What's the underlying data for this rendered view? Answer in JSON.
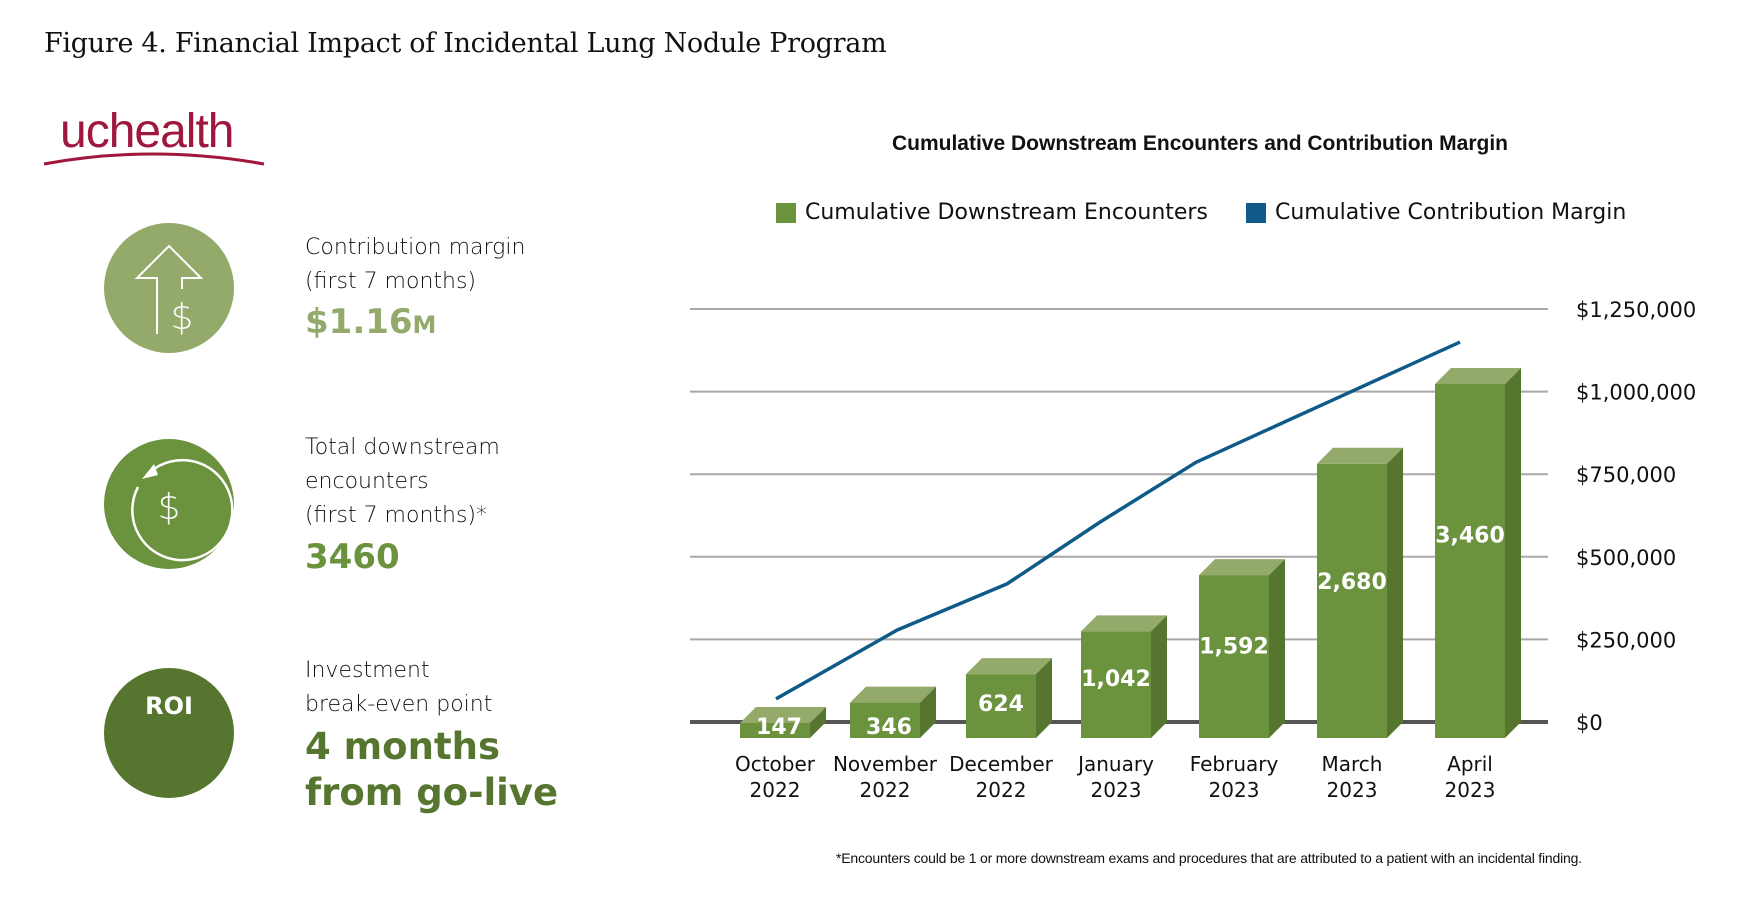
{
  "figure_title": "Figure 4. Financial Impact of Incidental Lung Nodule Program",
  "logo": {
    "text": "uchealth",
    "color": "#a0173e"
  },
  "kpis": [
    {
      "icon": "arrow-up-dollar-icon",
      "label_lines": [
        "Contribution margin",
        "(first 7 months)"
      ],
      "value": "$1.16",
      "value_suffix": "M",
      "color": "#94aa6b"
    },
    {
      "icon": "circular-arrow-dollar-icon",
      "label_lines": [
        "Total downstream",
        "encounters",
        "(first 7 months)*"
      ],
      "value": "3460",
      "color": "#6b923d"
    },
    {
      "icon": "roi-badge",
      "badge_text": "ROI",
      "label_lines": [
        "Investment",
        "break-even point"
      ],
      "value_lines": [
        "4 months",
        "from go-live"
      ],
      "color": "#56762f"
    }
  ],
  "footnote": "*Encounters could be 1 or more downstream exams and procedures that are attributed to a patient with an incidental finding.",
  "chart_data": {
    "type": "bar",
    "title": "Cumulative Downstream Encounters and Contribution Margin",
    "categories": [
      "October 2022",
      "November 2022",
      "December 2022",
      "January 2023",
      "February 2023",
      "March 2023",
      "April 2023"
    ],
    "category_lines": [
      [
        "October",
        "2022"
      ],
      [
        "November",
        "2022"
      ],
      [
        "December",
        "2022"
      ],
      [
        "January",
        "2023"
      ],
      [
        "February",
        "2023"
      ],
      [
        "March",
        "2023"
      ],
      [
        "April",
        "2023"
      ]
    ],
    "series": [
      {
        "name": "Cumulative Downstream Encounters",
        "type": "bar",
        "color": "#6b923d",
        "values": [
          147,
          346,
          624,
          1042,
          1592,
          2680,
          3460
        ],
        "labels": [
          "147",
          "346",
          "624",
          "1,042",
          "1,592",
          "2,680",
          "3,460"
        ]
      },
      {
        "name": "Cumulative Contribution Margin",
        "type": "line",
        "color": "#0f5a87",
        "values": [
          70000,
          278000,
          418000,
          605000,
          786000,
          968000,
          1150000
        ]
      }
    ],
    "y_right_axis": {
      "ticks": [
        0,
        250000,
        500000,
        750000,
        1000000,
        1250000
      ],
      "tick_labels": [
        "$0",
        "$250,000",
        "$500,000",
        "$750,000",
        "$1,000,000",
        "$1,250,000"
      ],
      "range": [
        0,
        1250000
      ]
    },
    "bar_scale_max": 3460,
    "legend_position": "top",
    "grid": true,
    "colors": {
      "bar_front": "#6b923d",
      "bar_top": "#94aa6b",
      "bar_side": "#56762f",
      "gridline": "#a8a8a8",
      "baseline": "#555555"
    }
  }
}
